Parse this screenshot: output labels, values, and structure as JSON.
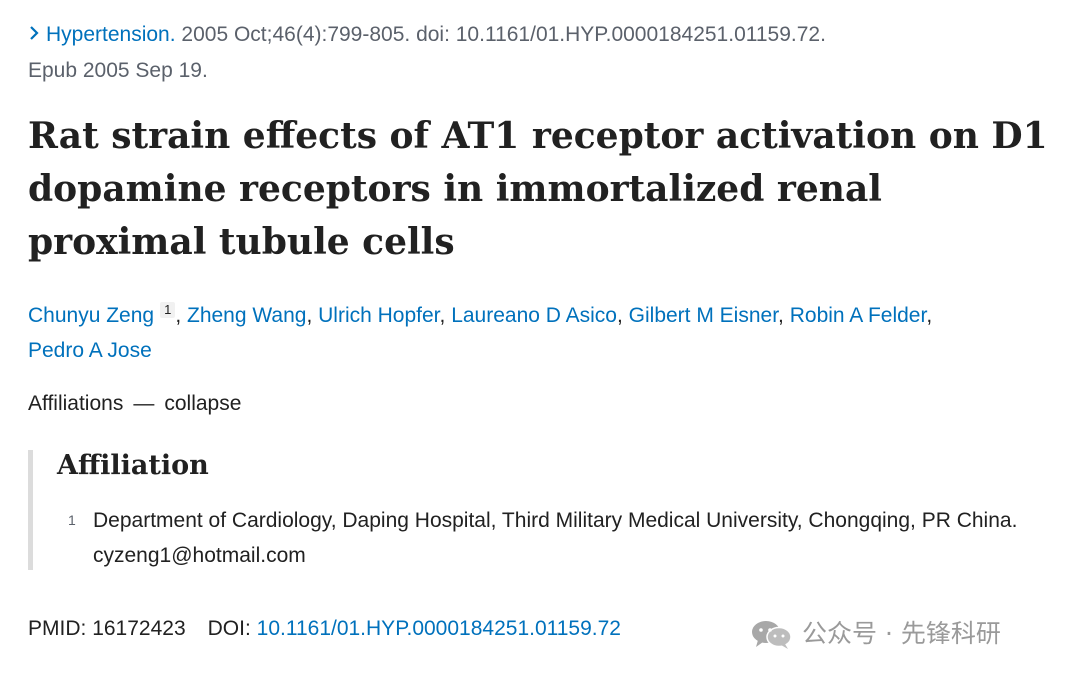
{
  "citation": {
    "journal": "Hypertension.",
    "details": " 2005 Oct;46(4):799-805. doi: 10.1161/01.HYP.0000184251.01159.72.",
    "epub": "Epub 2005 Sep 19."
  },
  "title": "Rat strain effects of AT1 receptor activation on D1 dopamine receptors in immortalized renal proximal tubule cells",
  "authors": [
    {
      "name": "Chunyu Zeng",
      "sup": "1"
    },
    {
      "name": "Zheng Wang"
    },
    {
      "name": "Ulrich Hopfer"
    },
    {
      "name": "Laureano D Asico"
    },
    {
      "name": "Gilbert M Eisner"
    },
    {
      "name": "Robin A Felder"
    },
    {
      "name": "Pedro A Jose"
    }
  ],
  "affiliations_toggle": {
    "label": "Affiliations",
    "action": "collapse"
  },
  "affiliation": {
    "heading": "Affiliation",
    "items": [
      {
        "num": "1",
        "text": "Department of Cardiology, Daping Hospital, Third Military Medical University, Chongqing, PR China. cyzeng1@hotmail.com"
      }
    ]
  },
  "identifiers": {
    "pmid_label": "PMID:",
    "pmid": "16172423",
    "doi_label": "DOI:",
    "doi": "10.1161/01.HYP.0000184251.01159.72"
  },
  "watermark": {
    "icon": "wechat-icon",
    "text": "公众号 · 先锋科研"
  }
}
